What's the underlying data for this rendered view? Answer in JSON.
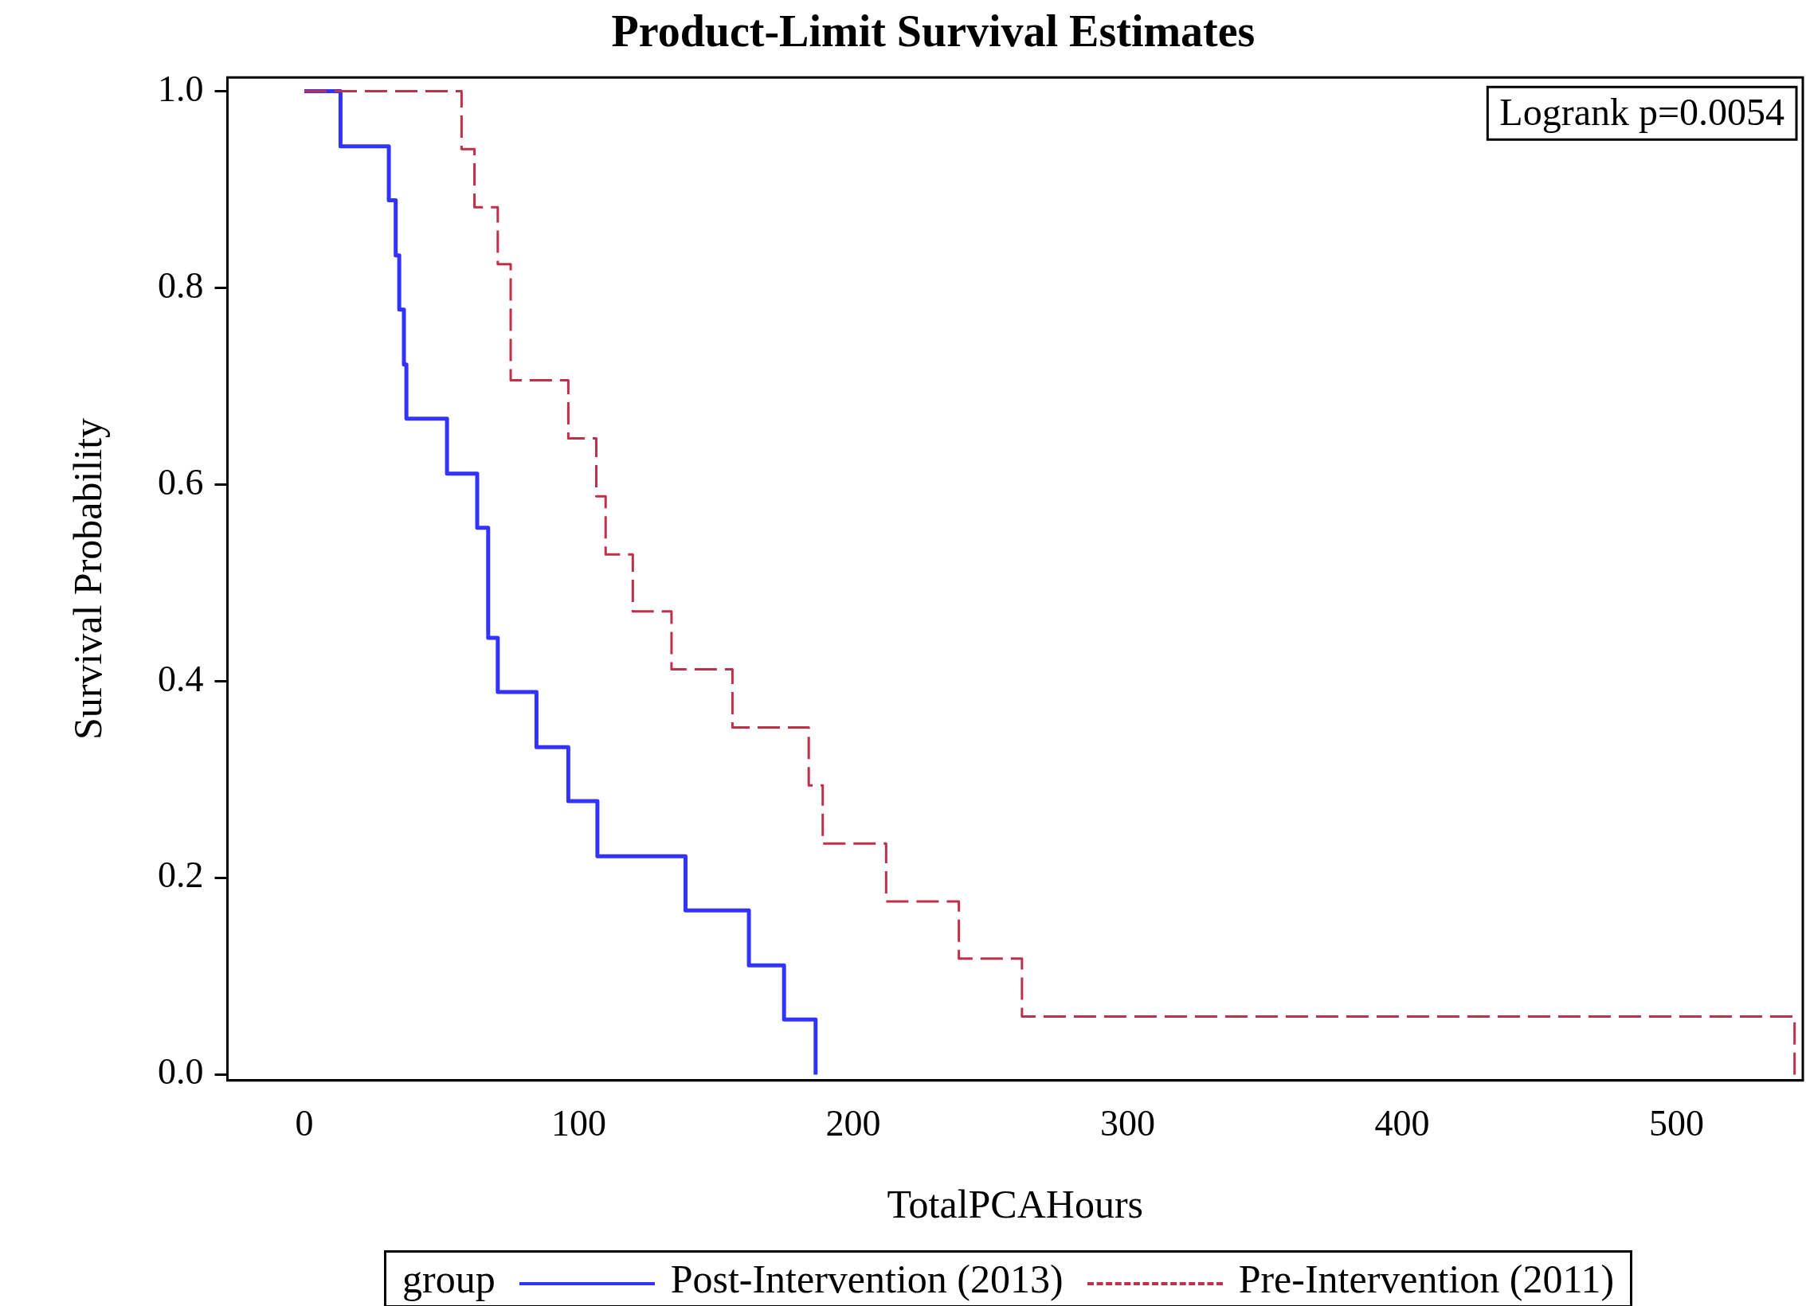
{
  "chart_data": {
    "type": "step",
    "title": "Product-Limit Survival Estimates",
    "xlabel": "TotalPCAHours",
    "ylabel": "Survival Probability",
    "legend_title": "group",
    "legend": "bottom",
    "grid": false,
    "marker": "none",
    "xlim": [
      -28,
      546
    ],
    "xticks": [
      0,
      100,
      200,
      300,
      400,
      500
    ],
    "ylim": [
      -0.006,
      1.014
    ],
    "yticks": [
      {
        "value": 0,
        "label": "0.0"
      },
      0.2,
      0.4,
      0.6,
      0.8,
      {
        "value": 1,
        "label": "1.0"
      }
    ],
    "annotations": [
      "Logrank p=0.0054"
    ],
    "series": [
      {
        "name": "Post-Intervention (2013)",
        "color": "#3333ff",
        "line_style": "solid",
        "x": [
          0,
          13.2,
          30.8,
          33.3,
          34.6,
          36.3,
          37.2,
          52,
          63,
          67,
          70.5,
          84.6,
          96.2,
          106.8,
          138.9,
          162,
          174.8,
          186.3
        ],
        "values": [
          1,
          0.944,
          0.889,
          0.833,
          0.778,
          0.722,
          0.667,
          0.611,
          0.556,
          0.444,
          0.389,
          0.333,
          0.278,
          0.222,
          0.167,
          0.111,
          0.056,
          0
        ]
      },
      {
        "name": "Pre-Intervention (2011)",
        "color": "#c0304a",
        "line_style": "dashed",
        "x": [
          0,
          57.3,
          62,
          70.5,
          75.2,
          96.2,
          106.4,
          109.8,
          119.7,
          133.8,
          156,
          183.8,
          188.9,
          212,
          238.5,
          261.5,
          543
        ],
        "values": [
          1,
          0.941,
          0.882,
          0.824,
          0.706,
          0.647,
          0.588,
          0.529,
          0.471,
          0.412,
          0.353,
          0.294,
          0.235,
          0.176,
          0.118,
          0.059,
          0
        ]
      }
    ]
  }
}
